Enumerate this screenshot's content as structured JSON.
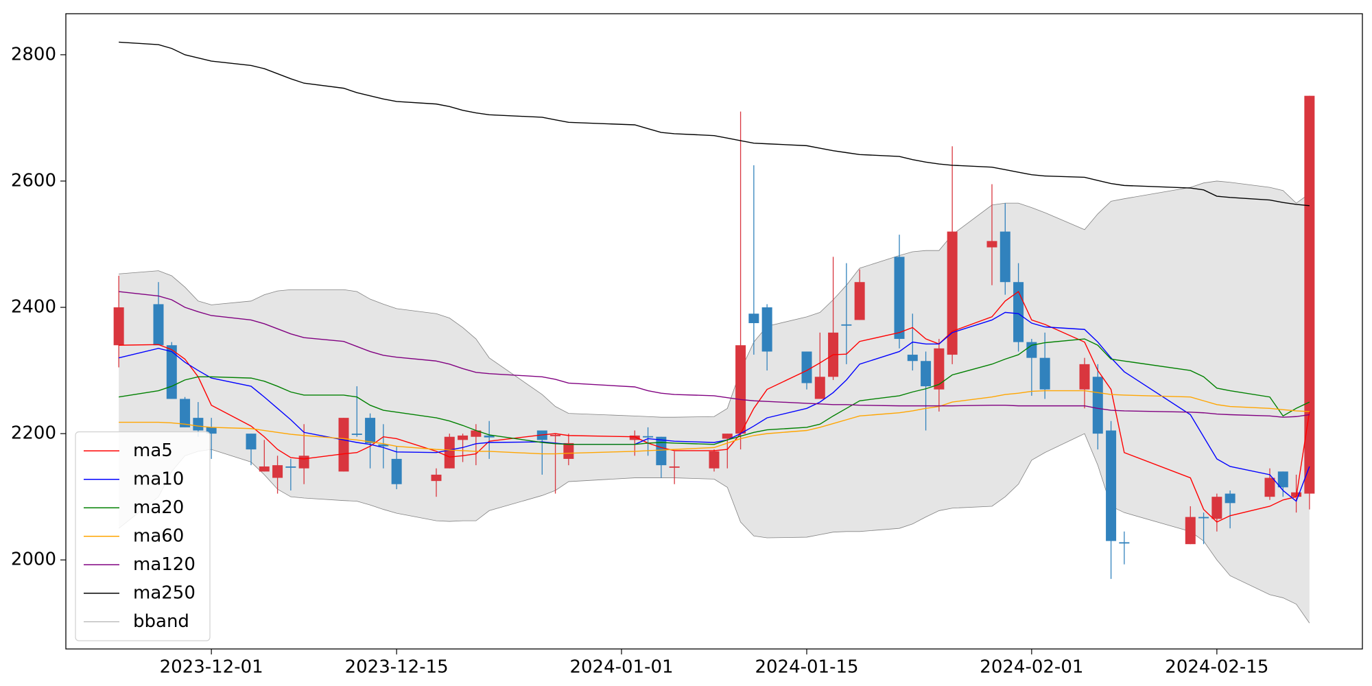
{
  "chart_data": {
    "type": "candlestick",
    "x": [
      "2023-11-24",
      "2023-11-27",
      "2023-11-28",
      "2023-11-29",
      "2023-11-30",
      "2023-12-01",
      "2023-12-04",
      "2023-12-05",
      "2023-12-06",
      "2023-12-07",
      "2023-12-08",
      "2023-12-11",
      "2023-12-12",
      "2023-12-13",
      "2023-12-14",
      "2023-12-15",
      "2023-12-18",
      "2023-12-19",
      "2023-12-20",
      "2023-12-21",
      "2023-12-22",
      "2023-12-26",
      "2023-12-27",
      "2023-12-28",
      "2024-01-02",
      "2024-01-03",
      "2024-01-04",
      "2024-01-05",
      "2024-01-08",
      "2024-01-09",
      "2024-01-10",
      "2024-01-11",
      "2024-01-12",
      "2024-01-15",
      "2024-01-16",
      "2024-01-17",
      "2024-01-18",
      "2024-01-19",
      "2024-01-22",
      "2024-01-23",
      "2024-01-24",
      "2024-01-25",
      "2024-01-26",
      "2024-01-29",
      "2024-01-30",
      "2024-01-31",
      "2024-02-01",
      "2024-02-02",
      "2024-02-05",
      "2024-02-06",
      "2024-02-07",
      "2024-02-08",
      "2024-02-13",
      "2024-02-14",
      "2024-02-15",
      "2024-02-16",
      "2024-02-19",
      "2024-02-20",
      "2024-02-21",
      "2024-02-22"
    ],
    "open": [
      2340,
      2405,
      2340,
      2255,
      2225,
      2210,
      2200,
      2140,
      2130,
      2148,
      2145,
      2140,
      2200,
      2225,
      2183,
      2160,
      2125,
      2145,
      2190,
      2195,
      2197,
      2205,
      2196,
      2160,
      2190,
      2196,
      2195,
      2146,
      2145,
      2192,
      2200,
      2390,
      2400,
      2330,
      2255,
      2290,
      2373,
      2380,
      2480,
      2325,
      2315,
      2270,
      2325,
      2495,
      2520,
      2440,
      2345,
      2320,
      2270,
      2290,
      2205,
      2028,
      2025,
      2068,
      2065,
      2105,
      2100,
      2140,
      2100,
      2105
    ],
    "high": [
      2450,
      2440,
      2345,
      2258,
      2250,
      2225,
      2200,
      2190,
      2165,
      2160,
      2215,
      2225,
      2275,
      2232,
      2215,
      2180,
      2145,
      2200,
      2200,
      2215,
      2220,
      2205,
      2200,
      2200,
      2205,
      2210,
      2195,
      2172,
      2175,
      2200,
      2710,
      2625,
      2405,
      2330,
      2360,
      2480,
      2470,
      2460,
      2515,
      2390,
      2330,
      2350,
      2655,
      2595,
      2565,
      2470,
      2350,
      2360,
      2320,
      2310,
      2220,
      2045,
      2085,
      2075,
      2105,
      2110,
      2145,
      2140,
      2135,
      2735
    ],
    "low": [
      2305,
      2340,
      2255,
      2210,
      2195,
      2160,
      2150,
      2140,
      2105,
      2110,
      2120,
      2140,
      2195,
      2145,
      2145,
      2112,
      2100,
      2145,
      2155,
      2150,
      2160,
      2135,
      2105,
      2150,
      2165,
      2165,
      2130,
      2120,
      2140,
      2145,
      2175,
      2325,
      2300,
      2270,
      2255,
      2285,
      2310,
      2380,
      2335,
      2300,
      2205,
      2235,
      2310,
      2435,
      2420,
      2330,
      2260,
      2255,
      2240,
      2175,
      1970,
      1993,
      2025,
      2025,
      2045,
      2050,
      2095,
      2100,
      2075,
      2080
    ],
    "close": [
      2400,
      2340,
      2255,
      2210,
      2205,
      2200,
      2175,
      2148,
      2150,
      2146,
      2165,
      2225,
      2198,
      2185,
      2180,
      2120,
      2135,
      2195,
      2197,
      2205,
      2194,
      2190,
      2198,
      2185,
      2197,
      2194,
      2150,
      2148,
      2172,
      2200,
      2340,
      2375,
      2330,
      2280,
      2290,
      2360,
      2371,
      2440,
      2350,
      2315,
      2275,
      2335,
      2520,
      2505,
      2440,
      2345,
      2320,
      2270,
      2310,
      2200,
      2030,
      2026,
      2068,
      2066,
      2100,
      2090,
      2130,
      2115,
      2107,
      2735
    ],
    "up_color": "#d9363e",
    "down_color": "#3182bd",
    "series": [
      {
        "name": "ma5",
        "color": "#ff0000",
        "values": [
          2340,
          2341,
          2333,
          2318,
          2290,
          2245,
          2212,
          2195,
          2175,
          2162,
          2160,
          2168,
          2170,
          2180,
          2195,
          2192,
          2172,
          2163,
          2165,
          2168,
          2188,
          2198,
          2200,
          2197,
          2195,
          2185,
          2178,
          2173,
          2173,
          2175,
          2200,
          2240,
          2270,
          2300,
          2312,
          2325,
          2326,
          2346,
          2360,
          2368,
          2350,
          2342,
          2362,
          2385,
          2410,
          2425,
          2380,
          2373,
          2345,
          2300,
          2270,
          2170,
          2130,
          2080,
          2060,
          2070,
          2085,
          2095,
          2100,
          2235
        ]
      },
      {
        "name": "ma10",
        "color": "#0000ff",
        "values": [
          2320,
          2335,
          2330,
          2313,
          2300,
          2288,
          2275,
          2258,
          2240,
          2222,
          2202,
          2190,
          2186,
          2183,
          2178,
          2171,
          2170,
          2174,
          2178,
          2184,
          2186,
          2187,
          2185,
          2183,
          2183,
          2192,
          2190,
          2188,
          2186,
          2190,
          2200,
          2212,
          2225,
          2240,
          2250,
          2265,
          2285,
          2310,
          2330,
          2345,
          2342,
          2342,
          2360,
          2380,
          2392,
          2390,
          2375,
          2369,
          2365,
          2345,
          2320,
          2298,
          2230,
          2195,
          2160,
          2148,
          2135,
          2110,
          2093,
          2148
        ]
      },
      {
        "name": "ma20",
        "color": "#008000",
        "values": [
          2258,
          2268,
          2275,
          2285,
          2290,
          2290,
          2288,
          2283,
          2275,
          2266,
          2261,
          2261,
          2258,
          2245,
          2237,
          2234,
          2225,
          2220,
          2213,
          2205,
          2198,
          2186,
          2184,
          2183,
          2183,
          2185,
          2186,
          2185,
          2183,
          2190,
          2196,
          2202,
          2206,
          2210,
          2215,
          2228,
          2240,
          2252,
          2260,
          2266,
          2271,
          2278,
          2293,
          2310,
          2318,
          2325,
          2340,
          2344,
          2350,
          2340,
          2318,
          2315,
          2300,
          2290,
          2272,
          2268,
          2258,
          2228,
          2240,
          2250
        ]
      },
      {
        "name": "ma60",
        "color": "#ffa500",
        "values": [
          2218,
          2218,
          2217,
          2215,
          2212,
          2210,
          2208,
          2205,
          2202,
          2199,
          2197,
          2192,
          2190,
          2187,
          2184,
          2180,
          2175,
          2174,
          2173,
          2172,
          2172,
          2168,
          2168,
          2169,
          2172,
          2173,
          2174,
          2175,
          2178,
          2185,
          2192,
          2197,
          2200,
          2205,
          2210,
          2216,
          2222,
          2228,
          2233,
          2236,
          2240,
          2243,
          2250,
          2258,
          2262,
          2264,
          2267,
          2268,
          2268,
          2265,
          2262,
          2261,
          2258,
          2252,
          2246,
          2243,
          2240,
          2238,
          2236,
          2235
        ]
      },
      {
        "name": "ma120",
        "color": "#800080",
        "values": [
          2425,
          2418,
          2412,
          2400,
          2393,
          2387,
          2380,
          2374,
          2366,
          2358,
          2352,
          2346,
          2338,
          2330,
          2324,
          2321,
          2315,
          2310,
          2303,
          2297,
          2295,
          2290,
          2286,
          2280,
          2274,
          2268,
          2264,
          2262,
          2260,
          2257,
          2254,
          2252,
          2251,
          2248,
          2247,
          2246,
          2246,
          2245,
          2244,
          2244,
          2244,
          2244,
          2244,
          2245,
          2245,
          2244,
          2244,
          2244,
          2244,
          2240,
          2237,
          2236,
          2234,
          2233,
          2231,
          2230,
          2228,
          2226,
          2227,
          2230
        ]
      },
      {
        "name": "ma250",
        "color": "#000000",
        "values": [
          2820,
          2816,
          2810,
          2800,
          2795,
          2790,
          2783,
          2778,
          2770,
          2762,
          2755,
          2747,
          2740,
          2735,
          2730,
          2726,
          2722,
          2718,
          2712,
          2708,
          2705,
          2701,
          2697,
          2693,
          2689,
          2683,
          2677,
          2675,
          2672,
          2668,
          2664,
          2660,
          2659,
          2656,
          2652,
          2648,
          2645,
          2642,
          2639,
          2634,
          2630,
          2627,
          2625,
          2622,
          2618,
          2614,
          2610,
          2608,
          2606,
          2601,
          2596,
          2593,
          2589,
          2586,
          2576,
          2574,
          2570,
          2566,
          2563,
          2561
        ]
      },
      {
        "name": "bband",
        "color": "#808080",
        "fill": "#e5e5e5",
        "upper": [
          2453,
          2458,
          2450,
          2432,
          2410,
          2404,
          2410,
          2420,
          2426,
          2428,
          2428,
          2428,
          2425,
          2413,
          2405,
          2398,
          2390,
          2383,
          2368,
          2350,
          2320,
          2262,
          2243,
          2232,
          2228,
          2227,
          2226,
          2226,
          2227,
          2240,
          2300,
          2345,
          2370,
          2385,
          2392,
          2412,
          2435,
          2462,
          2482,
          2488,
          2490,
          2490,
          2515,
          2562,
          2565,
          2565,
          2558,
          2550,
          2523,
          2548,
          2568,
          2572,
          2590,
          2597,
          2600,
          2598,
          2590,
          2585,
          2565,
          2580
        ],
        "lower": [
          2050,
          2100,
          2140,
          2165,
          2172,
          2175,
          2155,
          2135,
          2112,
          2100,
          2098,
          2094,
          2093,
          2087,
          2080,
          2074,
          2062,
          2061,
          2062,
          2062,
          2078,
          2102,
          2110,
          2124,
          2130,
          2130,
          2130,
          2130,
          2128,
          2115,
          2060,
          2038,
          2035,
          2036,
          2040,
          2044,
          2045,
          2045,
          2050,
          2057,
          2068,
          2078,
          2082,
          2085,
          2100,
          2120,
          2158,
          2170,
          2200,
          2150,
          2085,
          2075,
          2045,
          2030,
          2000,
          1975,
          1945,
          1940,
          1930,
          1900
        ]
      }
    ],
    "xlim": [
      "2023-11-20",
      "2024-02-26"
    ],
    "xticks": [
      "2023-12-01",
      "2023-12-15",
      "2024-01-01",
      "2024-01-15",
      "2024-02-01",
      "2024-02-15"
    ],
    "ylim": [
      1859,
      2865
    ],
    "yticks": [
      2000,
      2200,
      2400,
      2600,
      2800
    ],
    "legend": "lower left"
  }
}
